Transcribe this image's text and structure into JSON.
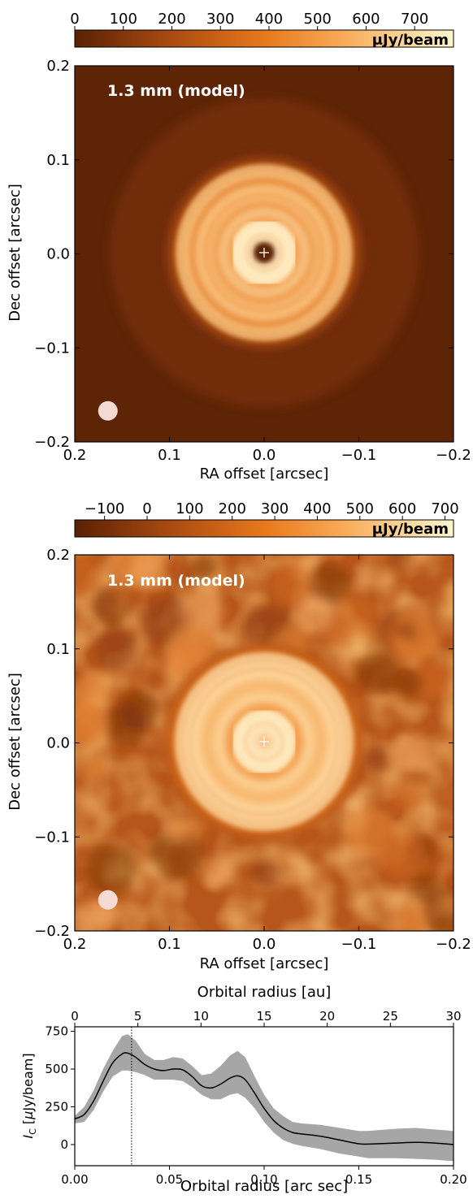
{
  "chart_data": [
    {
      "type": "heatmap",
      "panel_label": "1.3 mm (model)",
      "xlabel": "RA offset [arcsec]",
      "ylabel": "Dec offset [arcsec]",
      "xlim": [
        0.2,
        -0.2
      ],
      "ylim": [
        -0.2,
        0.2
      ],
      "xticks": [
        "0.2",
        "0.1",
        "0.0",
        "−0.1",
        "−0.2"
      ],
      "yticks": [
        "0.2",
        "0.1",
        "0.0",
        "−0.1",
        "−0.2"
      ],
      "colorbar": {
        "label": "μJy/beam",
        "ticks": [
          "0",
          "100",
          "200",
          "300",
          "400",
          "500",
          "600",
          "700"
        ],
        "range": [
          0,
          780
        ]
      },
      "rings_arcsec": [
        0.028,
        0.055,
        0.085
      ],
      "beam_center_arcsec": [
        0.165,
        -0.167
      ],
      "colors": {
        "dark": "#5a2105",
        "mid": "#e8781c",
        "light": "#fff2c4"
      }
    },
    {
      "type": "heatmap",
      "panel_label": "1.3 mm (model)",
      "xlabel": "RA offset [arcsec]",
      "ylabel": "Dec offset [arcsec]",
      "xlim": [
        0.2,
        -0.2
      ],
      "ylim": [
        -0.2,
        0.2
      ],
      "xticks": [
        "0.2",
        "0.1",
        "0.0",
        "−0.1",
        "−0.2"
      ],
      "yticks": [
        "0.2",
        "0.1",
        "0.0",
        "−0.1",
        "−0.2"
      ],
      "colorbar": {
        "label": "μJy/beam",
        "ticks": [
          "−100",
          "0",
          "100",
          "200",
          "300",
          "400",
          "500",
          "600",
          "700"
        ],
        "range": [
          -170,
          720
        ]
      },
      "rings_arcsec": [
        0.028,
        0.055,
        0.085
      ],
      "beam_center_arcsec": [
        0.165,
        -0.167
      ],
      "colors": {
        "dark": "#7a2d06",
        "mid": "#e8781c",
        "light": "#fff2c4"
      }
    },
    {
      "type": "line",
      "xlabel": "Orbital radius [arc sec]",
      "x2label": "Orbital radius [au]",
      "ylabel": "I_C [μJy/beam]",
      "xlim": [
        0.0,
        0.2
      ],
      "ylim": [
        -140,
        780
      ],
      "xticks": [
        "0.00",
        "0.05",
        "0.10",
        "0.15",
        "0.20"
      ],
      "x2ticks": [
        "0",
        "5",
        "10",
        "15",
        "20",
        "25",
        "30"
      ],
      "yticks": [
        "0",
        "250",
        "500",
        "750"
      ],
      "vline_x": 0.03,
      "series": [
        {
          "x": [
            0.0,
            0.005,
            0.01,
            0.015,
            0.02,
            0.025,
            0.028,
            0.032,
            0.037,
            0.042,
            0.047,
            0.052,
            0.057,
            0.062,
            0.067,
            0.072,
            0.077,
            0.082,
            0.086,
            0.09,
            0.095,
            0.1,
            0.105,
            0.11,
            0.115,
            0.12,
            0.13,
            0.14,
            0.15,
            0.155,
            0.16,
            0.17,
            0.18,
            0.19,
            0.2
          ],
          "y": [
            170,
            200,
            290,
            420,
            540,
            600,
            605,
            580,
            530,
            500,
            490,
            500,
            495,
            450,
            390,
            375,
            400,
            440,
            455,
            430,
            340,
            240,
            160,
            110,
            80,
            70,
            55,
            30,
            5,
            3,
            5,
            10,
            15,
            10,
            0
          ],
          "lower": [
            140,
            150,
            230,
            350,
            450,
            490,
            490,
            480,
            460,
            430,
            430,
            430,
            420,
            380,
            330,
            300,
            300,
            330,
            340,
            310,
            240,
            150,
            80,
            30,
            5,
            -10,
            -30,
            -60,
            -80,
            -90,
            -90,
            -90,
            -95,
            -100,
            -110
          ],
          "upper": [
            190,
            250,
            360,
            500,
            620,
            720,
            730,
            690,
            600,
            560,
            560,
            580,
            570,
            520,
            460,
            470,
            520,
            590,
            620,
            580,
            450,
            330,
            240,
            190,
            150,
            140,
            130,
            110,
            90,
            90,
            95,
            105,
            110,
            100,
            90
          ]
        }
      ]
    }
  ]
}
